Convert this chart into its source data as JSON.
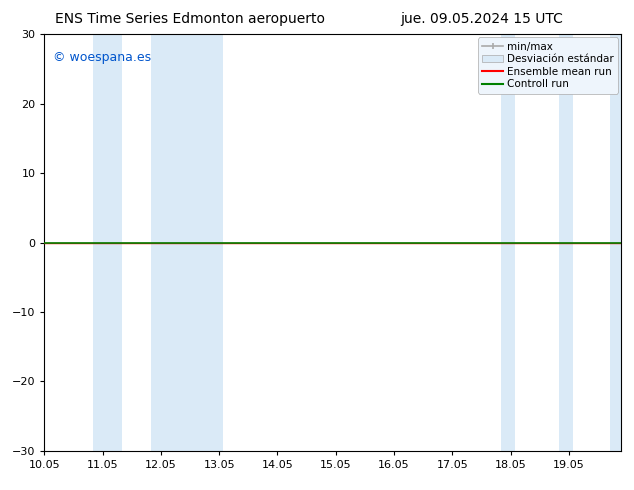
{
  "title_left": "ENS Time Series Edmonton aeropuerto",
  "title_right": "jue. 09.05.2024 15 UTC",
  "watermark": "© woespana.es",
  "watermark_color": "#0055cc",
  "ylim": [
    -30,
    30
  ],
  "yticks": [
    -30,
    -20,
    -10,
    0,
    10,
    20,
    30
  ],
  "xlim": [
    10.05,
    19.95
  ],
  "xtick_labels": [
    "10.05",
    "11.05",
    "12.05",
    "13.05",
    "14.05",
    "15.05",
    "16.05",
    "17.05",
    "18.05",
    "19.05"
  ],
  "xtick_positions": [
    10.05,
    11.05,
    12.05,
    13.05,
    14.05,
    15.05,
    16.05,
    17.05,
    18.05,
    19.05
  ],
  "shade_bands": [
    [
      10.88,
      11.38
    ],
    [
      11.88,
      13.12
    ],
    [
      17.88,
      18.12
    ],
    [
      18.88,
      19.12
    ],
    [
      19.75,
      19.95
    ]
  ],
  "shade_color": "#daeaf7",
  "ensemble_mean_color": "#ff0000",
  "controll_run_color": "#008000",
  "bg_color": "#ffffff",
  "plot_bg_color": "#ffffff",
  "border_color": "#000000",
  "font_size_title": 10,
  "font_size_ticks": 8,
  "font_size_watermark": 9,
  "font_size_legend": 7.5
}
